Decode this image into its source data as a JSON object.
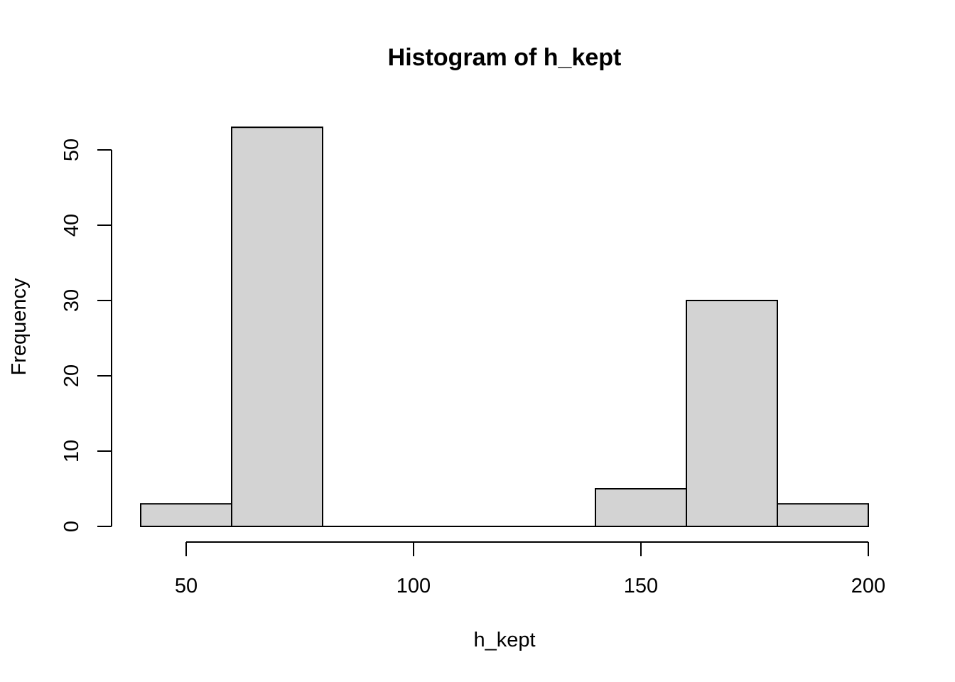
{
  "chart_data": {
    "type": "bar",
    "title": "Histogram of h_kept",
    "xlabel": "h_kept",
    "ylabel": "Frequency",
    "bins": [
      {
        "from": 40,
        "to": 60,
        "count": 3
      },
      {
        "from": 60,
        "to": 80,
        "count": 53
      },
      {
        "from": 80,
        "to": 100,
        "count": 0
      },
      {
        "from": 100,
        "to": 120,
        "count": 0
      },
      {
        "from": 120,
        "to": 140,
        "count": 0
      },
      {
        "from": 140,
        "to": 160,
        "count": 5
      },
      {
        "from": 160,
        "to": 180,
        "count": 30
      },
      {
        "from": 180,
        "to": 200,
        "count": 3
      }
    ],
    "xlim": [
      40,
      200
    ],
    "ylim": [
      0,
      53
    ],
    "x_ticks": [
      50,
      100,
      150,
      200
    ],
    "y_ticks": [
      0,
      10,
      20,
      30,
      40,
      50
    ],
    "bar_color": "#d3d3d3",
    "grid": false,
    "legend": "none"
  }
}
